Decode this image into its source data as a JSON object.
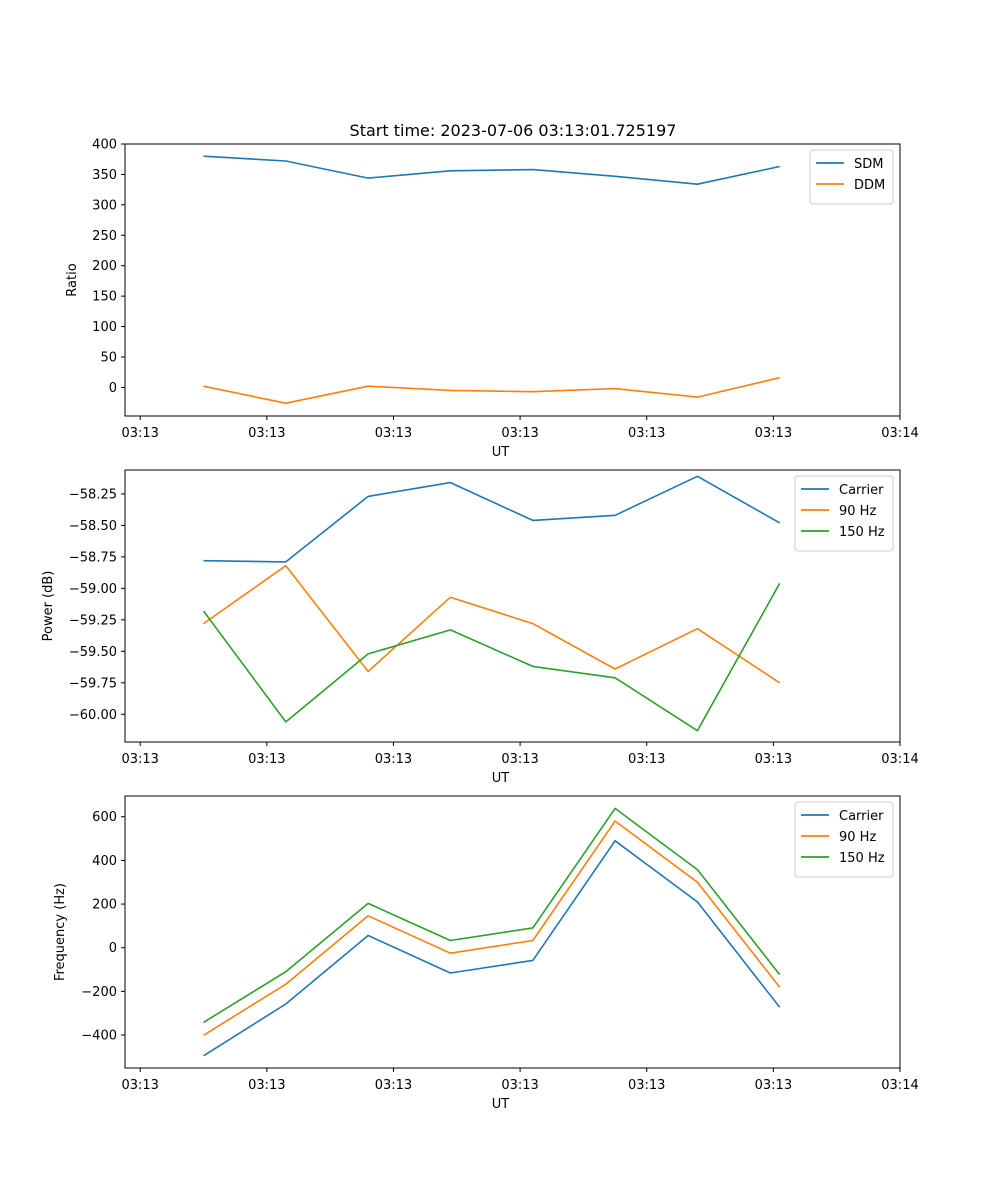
{
  "figure": {
    "title": "Start time: 2023-07-06 03:13:01.725197"
  },
  "chart_data": [
    {
      "type": "line",
      "title": "Start time: 2023-07-06 03:13:01.725197",
      "xlabel": "UT",
      "ylabel": "Ratio",
      "x_tick_labels": [
        "03:13",
        "03:13",
        "03:13",
        "03:13",
        "03:13",
        "03:13",
        "03:14"
      ],
      "x_ticks": [
        0,
        1,
        2,
        3,
        4,
        5,
        6
      ],
      "xlim": [
        -0.12,
        6.0
      ],
      "x": [
        0.5,
        1.15,
        1.8,
        2.45,
        3.1,
        3.75,
        4.4,
        5.05
      ],
      "yticks": [
        0,
        50,
        100,
        150,
        200,
        250,
        300,
        350,
        400
      ],
      "ytick_labels": [
        "0",
        "50",
        "100",
        "150",
        "200",
        "250",
        "300",
        "350",
        "400"
      ],
      "ylim": [
        -47,
        400
      ],
      "legend": "top-right",
      "series": [
        {
          "name": "SDM",
          "color": "#1f77b4",
          "values": [
            380,
            372,
            344,
            356,
            358,
            347,
            334,
            363
          ]
        },
        {
          "name": "DDM",
          "color": "#ff7f0e",
          "values": [
            2,
            -26,
            2,
            -5,
            -7,
            -2,
            -16,
            16
          ]
        }
      ]
    },
    {
      "type": "line",
      "title": "",
      "xlabel": "UT",
      "ylabel": "Power (dB)",
      "x_tick_labels": [
        "03:13",
        "03:13",
        "03:13",
        "03:13",
        "03:13",
        "03:13",
        "03:14"
      ],
      "x_ticks": [
        0,
        1,
        2,
        3,
        4,
        5,
        6
      ],
      "xlim": [
        -0.12,
        6.0
      ],
      "x": [
        0.5,
        1.15,
        1.8,
        2.45,
        3.1,
        3.75,
        4.4,
        5.05
      ],
      "yticks": [
        -60.0,
        -59.75,
        -59.5,
        -59.25,
        -59.0,
        -58.75,
        -58.5,
        -58.25
      ],
      "ytick_labels": [
        "−60.00",
        "−59.75",
        "−59.50",
        "−59.25",
        "−59.00",
        "−58.75",
        "−58.50",
        "−58.25"
      ],
      "ylim": [
        -60.22,
        -58.06
      ],
      "legend": "top-right",
      "series": [
        {
          "name": "Carrier",
          "color": "#1f77b4",
          "values": [
            -58.78,
            -58.79,
            -58.27,
            -58.16,
            -58.46,
            -58.42,
            -58.11,
            -58.48
          ]
        },
        {
          "name": "90 Hz",
          "color": "#ff7f0e",
          "values": [
            -59.28,
            -58.82,
            -59.66,
            -59.07,
            -59.28,
            -59.64,
            -59.32,
            -59.75
          ]
        },
        {
          "name": "150 Hz",
          "color": "#2ca02c",
          "values": [
            -59.18,
            -60.06,
            -59.52,
            -59.33,
            -59.62,
            -59.71,
            -60.13,
            -58.96
          ]
        }
      ]
    },
    {
      "type": "line",
      "title": "",
      "xlabel": "UT",
      "ylabel": "Frequency (Hz)",
      "x_tick_labels": [
        "03:13",
        "03:13",
        "03:13",
        "03:13",
        "03:13",
        "03:13",
        "03:14"
      ],
      "x_ticks": [
        0,
        1,
        2,
        3,
        4,
        5,
        6
      ],
      "xlim": [
        -0.12,
        6.0
      ],
      "x": [
        0.5,
        1.15,
        1.8,
        2.45,
        3.1,
        3.75,
        4.4,
        5.05
      ],
      "yticks": [
        -400,
        -200,
        0,
        200,
        400,
        600
      ],
      "ytick_labels": [
        "−400",
        "−200",
        "0",
        "200",
        "400",
        "600"
      ],
      "ylim": [
        -551,
        695
      ],
      "legend": "top-right",
      "series": [
        {
          "name": "Carrier",
          "color": "#1f77b4",
          "values": [
            -495,
            -258,
            56,
            -116,
            -58,
            490,
            210,
            -273
          ]
        },
        {
          "name": "90 Hz",
          "color": "#ff7f0e",
          "values": [
            -401,
            -167,
            146,
            -25,
            33,
            580,
            300,
            -181
          ]
        },
        {
          "name": "150 Hz",
          "color": "#2ca02c",
          "values": [
            -342,
            -110,
            203,
            33,
            91,
            638,
            358,
            -123
          ]
        }
      ]
    }
  ]
}
